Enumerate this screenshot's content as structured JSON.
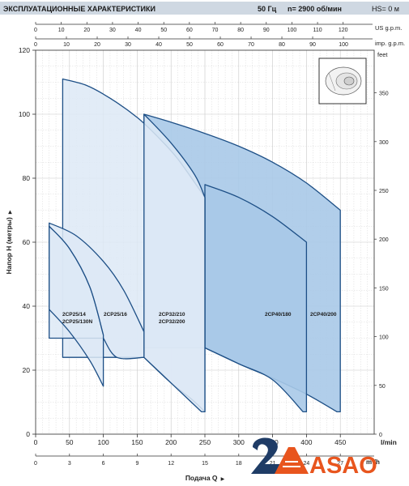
{
  "header": {
    "title": "ЭКСПЛУАТАЦИОННЫЕ ХАРАКТЕРИСТИКИ",
    "freq": "50 Гц",
    "speed": "n= 2900 об/мин",
    "hs": "HS= 0 м"
  },
  "logo": {
    "text": "ASAO"
  },
  "colors": {
    "outline": "#1d4f86",
    "fill_light": "#dde9f6",
    "fill_dark": "#a9c9e8",
    "header_bg": "#cfd8e2",
    "grid": "#c8c8c8",
    "logo_orange": "#e8551e",
    "logo_navy": "#1f3c66"
  },
  "chart_data": {
    "type": "area",
    "title": "",
    "xlabel": "l/min",
    "ylabel": "Напор H (метры)",
    "xlim": [
      0,
      500
    ],
    "ylim": [
      0,
      120
    ],
    "grid": true,
    "x_ticks": [
      0,
      50,
      100,
      150,
      200,
      250,
      300,
      350,
      400,
      450
    ],
    "y_ticks": [
      0,
      20,
      40,
      60,
      80,
      100,
      120
    ],
    "top_axis_us": {
      "label": "US g.p.m.",
      "ticks": [
        0,
        10,
        20,
        30,
        40,
        50,
        60,
        70,
        80,
        90,
        100,
        110,
        120
      ]
    },
    "top_axis_imp": {
      "label": "imp. g.p.m.",
      "ticks": [
        0,
        10,
        20,
        30,
        40,
        50,
        60,
        70,
        80,
        90,
        100
      ]
    },
    "right_axis_feet": {
      "label": "feet",
      "ticks": [
        0,
        50,
        100,
        150,
        200,
        250,
        300,
        350
      ]
    },
    "bottom_axis_m3h": {
      "label": "m³/h",
      "ticks": [
        0,
        3,
        6,
        9,
        12,
        15,
        18,
        21,
        24,
        27
      ]
    },
    "bottom_axis_title": "Подача Q",
    "series": [
      {
        "name": "2CP40/200",
        "fill": "dark",
        "top_curve": [
          [
            160,
            100
          ],
          [
            200,
            97.5
          ],
          [
            250,
            94
          ],
          [
            300,
            90
          ],
          [
            350,
            85
          ],
          [
            400,
            78.5
          ],
          [
            450,
            70
          ]
        ],
        "bottom_curve": [
          [
            250,
            27
          ],
          [
            300,
            22
          ],
          [
            350,
            17.5
          ],
          [
            400,
            12.5
          ],
          [
            445,
            7
          ]
        ],
        "max_q": 450,
        "min_head": 7
      },
      {
        "name": "2CP40/180",
        "fill": "dark",
        "top_curve": [
          [
            250,
            78
          ],
          [
            300,
            74
          ],
          [
            350,
            68
          ],
          [
            400,
            60
          ]
        ],
        "bottom_curve": [
          [
            250,
            27
          ],
          [
            300,
            22
          ],
          [
            350,
            17
          ],
          [
            395,
            7
          ]
        ],
        "max_q": 400,
        "min_head": 7
      },
      {
        "name": "2CP32/210",
        "fill": "light",
        "top_curve": [
          [
            40,
            111
          ],
          [
            75,
            109
          ],
          [
            110,
            105
          ],
          [
            150,
            99
          ],
          [
            180,
            93
          ],
          [
            210,
            86
          ],
          [
            250,
            74
          ]
        ],
        "bottom_curve": [
          [
            160,
            24
          ],
          [
            200,
            16
          ],
          [
            230,
            11
          ],
          [
            250,
            7
          ]
        ],
        "max_q": 250,
        "min_head": 7
      },
      {
        "name": "2CP32/200",
        "fill": "light",
        "top_curve": [
          [
            160,
            100
          ],
          [
            200,
            91
          ],
          [
            235,
            81
          ],
          [
            250,
            74
          ]
        ],
        "bottom_curve": [
          [
            160,
            24
          ],
          [
            200,
            16
          ],
          [
            245,
            7
          ]
        ],
        "max_q": 250,
        "min_head": 7
      },
      {
        "name": "2CP25/16",
        "fill": "light",
        "top_curve": [
          [
            20,
            66
          ],
          [
            60,
            62
          ],
          [
            100,
            54
          ],
          [
            130,
            45
          ],
          [
            160,
            32
          ]
        ],
        "bottom_curve": [
          [
            100,
            30
          ],
          [
            120,
            24
          ],
          [
            160,
            24
          ]
        ],
        "max_q": 160,
        "min_head": 24
      },
      {
        "name": "2CP25/14",
        "fill": "light",
        "top_curve": [
          [
            20,
            65
          ],
          [
            50,
            58
          ],
          [
            80,
            46
          ],
          [
            100,
            31
          ]
        ],
        "bottom_curve": [
          [
            20,
            39
          ],
          [
            50,
            32
          ],
          [
            80,
            23
          ],
          [
            100,
            15
          ]
        ],
        "max_q": 100,
        "min_head": 15
      },
      {
        "name": "2CP25/130N",
        "fill": "light",
        "top_curve": [
          [
            20,
            65
          ],
          [
            50,
            58
          ],
          [
            80,
            46
          ],
          [
            100,
            31
          ]
        ],
        "bottom_curve": [
          [
            20,
            39
          ],
          [
            50,
            32
          ],
          [
            80,
            23
          ],
          [
            100,
            15
          ]
        ],
        "max_q": 100,
        "min_head": 15
      }
    ],
    "series_labels": {
      "cp25_14": "2CP25/14",
      "cp25_130n": "2CP25/130N",
      "cp25_16": "2CP25/16",
      "cp32_210": "2CP32/210",
      "cp32_200": "2CP32/200",
      "cp40_180": "2CP40/180",
      "cp40_200": "2CP40/200"
    }
  }
}
